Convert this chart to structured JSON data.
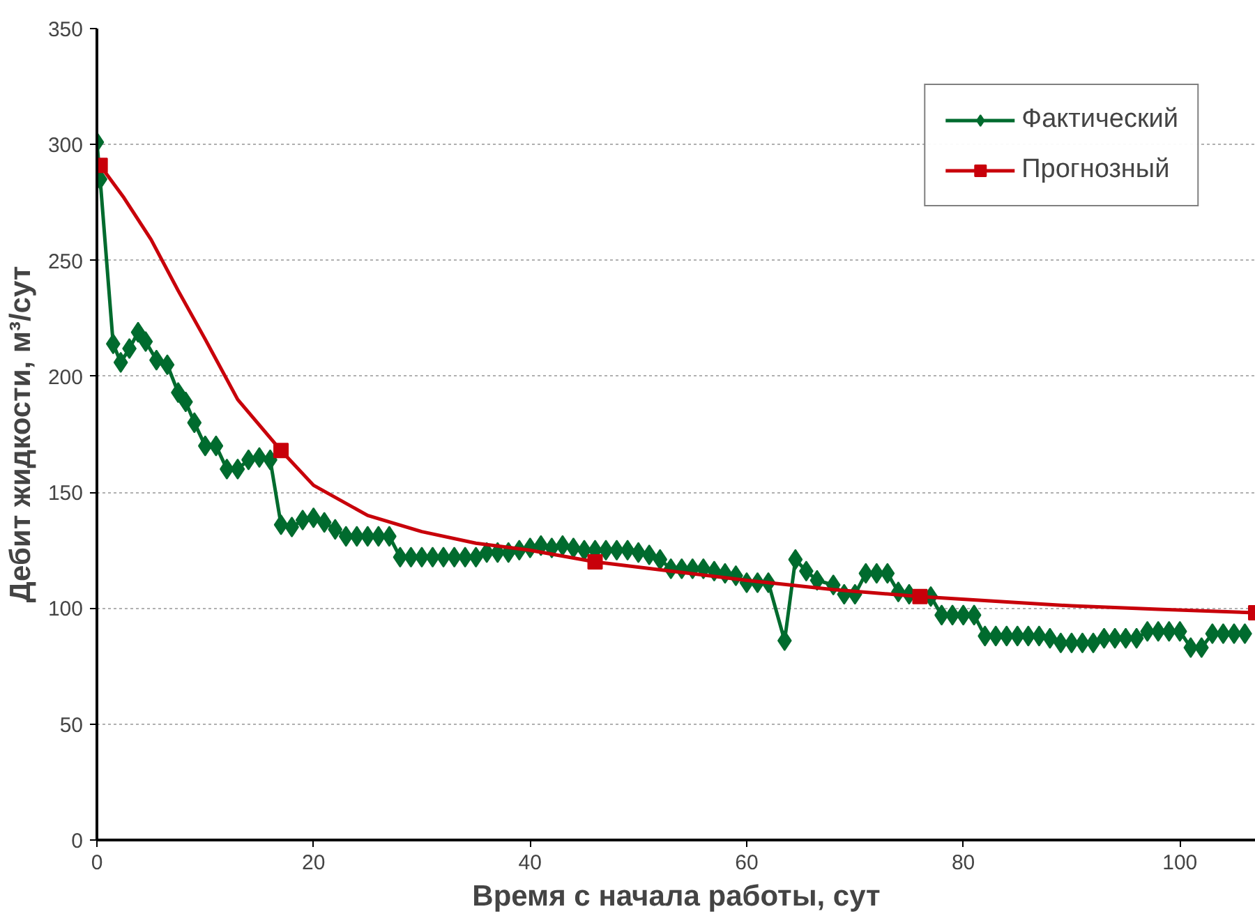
{
  "chart_data": {
    "type": "line",
    "xlabel": "Время с начала работы, сут",
    "ylabel": "Дебит жидкости, м³/сут",
    "xlim": [
      0,
      107
    ],
    "ylim": [
      0,
      350
    ],
    "xticks": [
      0,
      20,
      40,
      60,
      80,
      100
    ],
    "yticks": [
      0,
      50,
      100,
      150,
      200,
      250,
      300,
      350
    ],
    "grid": "y",
    "legend": "top right",
    "line_style": "solid",
    "series": [
      {
        "name": "Фактический",
        "color": "#006b2e",
        "marker": "diamond",
        "x": [
          0,
          0.3,
          1.5,
          2.2,
          3,
          3.8,
          4.5,
          5.5,
          6.5,
          7.5,
          8.2,
          9,
          10,
          11,
          12,
          13,
          14,
          15,
          16,
          17,
          18,
          19,
          20,
          21,
          22,
          23,
          24,
          25,
          26,
          27,
          28,
          29,
          30,
          31,
          32,
          33,
          34,
          35,
          36,
          37,
          38,
          39,
          40,
          41,
          42,
          43,
          44,
          45,
          46,
          47,
          48,
          49,
          50,
          51,
          52,
          53,
          54,
          55,
          56,
          57,
          58,
          59,
          60,
          61,
          62,
          63.5,
          64.5,
          65.5,
          66.5,
          68,
          69,
          70,
          71,
          72,
          73,
          74,
          75,
          77,
          78,
          79,
          80,
          81,
          82,
          83,
          84,
          85,
          86,
          87,
          88,
          89,
          90,
          91,
          92,
          93,
          94,
          95,
          96,
          97,
          98,
          99,
          100,
          101,
          102,
          103,
          104,
          105,
          106
        ],
        "values": [
          301,
          285,
          214,
          206,
          212,
          219,
          215,
          207,
          205,
          193,
          189,
          180,
          170,
          170,
          160,
          160,
          164,
          165,
          164,
          136,
          135,
          138,
          139,
          137,
          134,
          131,
          131,
          131,
          131,
          131,
          122,
          122,
          122,
          122,
          122,
          122,
          122,
          122,
          124,
          124,
          124,
          125,
          126,
          127,
          126,
          127,
          126,
          125,
          125,
          125,
          125,
          125,
          124,
          123,
          121,
          117,
          117,
          117,
          117,
          116,
          115,
          114,
          111,
          111,
          111,
          86,
          121,
          116,
          112,
          110,
          106,
          106,
          115,
          115,
          115,
          107,
          106,
          105,
          97,
          97,
          97,
          97,
          88,
          88,
          88,
          88,
          88,
          88,
          87,
          85,
          85,
          85,
          85,
          87,
          87,
          87,
          87,
          90,
          90,
          90,
          90,
          83,
          83,
          89,
          89,
          89,
          89
        ]
      },
      {
        "color": "#c8000a",
        "marker": "none",
        "x": [
          0.3,
          2.5,
          5,
          7.5,
          10,
          13,
          17,
          20,
          25,
          30,
          35,
          40,
          46,
          53,
          60,
          68,
          76,
          83,
          90,
          98,
          107
        ],
        "values": [
          291,
          277,
          259,
          237,
          216,
          190,
          168,
          153,
          140,
          133,
          128,
          125,
          120,
          116,
          112,
          108,
          105,
          103,
          101,
          99.5,
          98
        ]
      },
      {
        "name": "Прогнозный",
        "type": "scatter",
        "color": "#c8000a",
        "marker": "square",
        "x": [
          0.3,
          17,
          46,
          76,
          107
        ],
        "values": [
          291,
          168,
          120,
          105,
          98
        ]
      }
    ]
  }
}
